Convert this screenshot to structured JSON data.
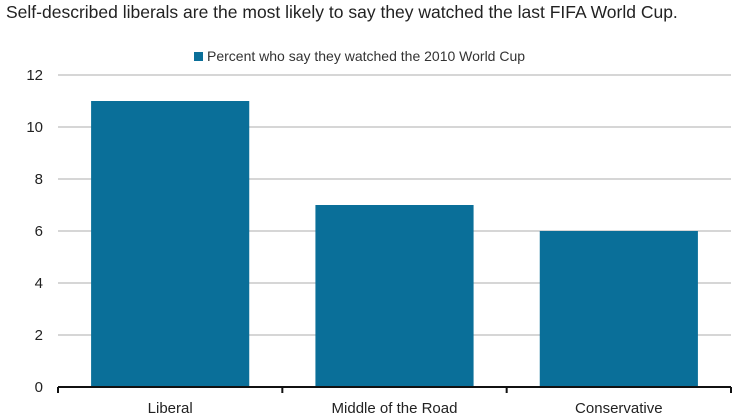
{
  "chart_data": {
    "type": "bar",
    "title": "Self-described liberals are the most likely to say they watched the last FIFA World Cup.",
    "categories": [
      "Liberal",
      "Middle of the Road",
      "Conservative"
    ],
    "series": [
      {
        "name": "Percent who say they watched the 2010 World Cup",
        "values": [
          11,
          7,
          6
        ]
      }
    ],
    "xlabel": "",
    "ylabel": "",
    "ylim": [
      0,
      12
    ],
    "yticks": [
      0,
      2,
      4,
      6,
      8,
      10,
      12
    ],
    "grid": true,
    "legend_position": "top-center",
    "colors": {
      "bar": "#0a6f99",
      "grid": "#c8c8c8",
      "axis": "#111111"
    }
  }
}
